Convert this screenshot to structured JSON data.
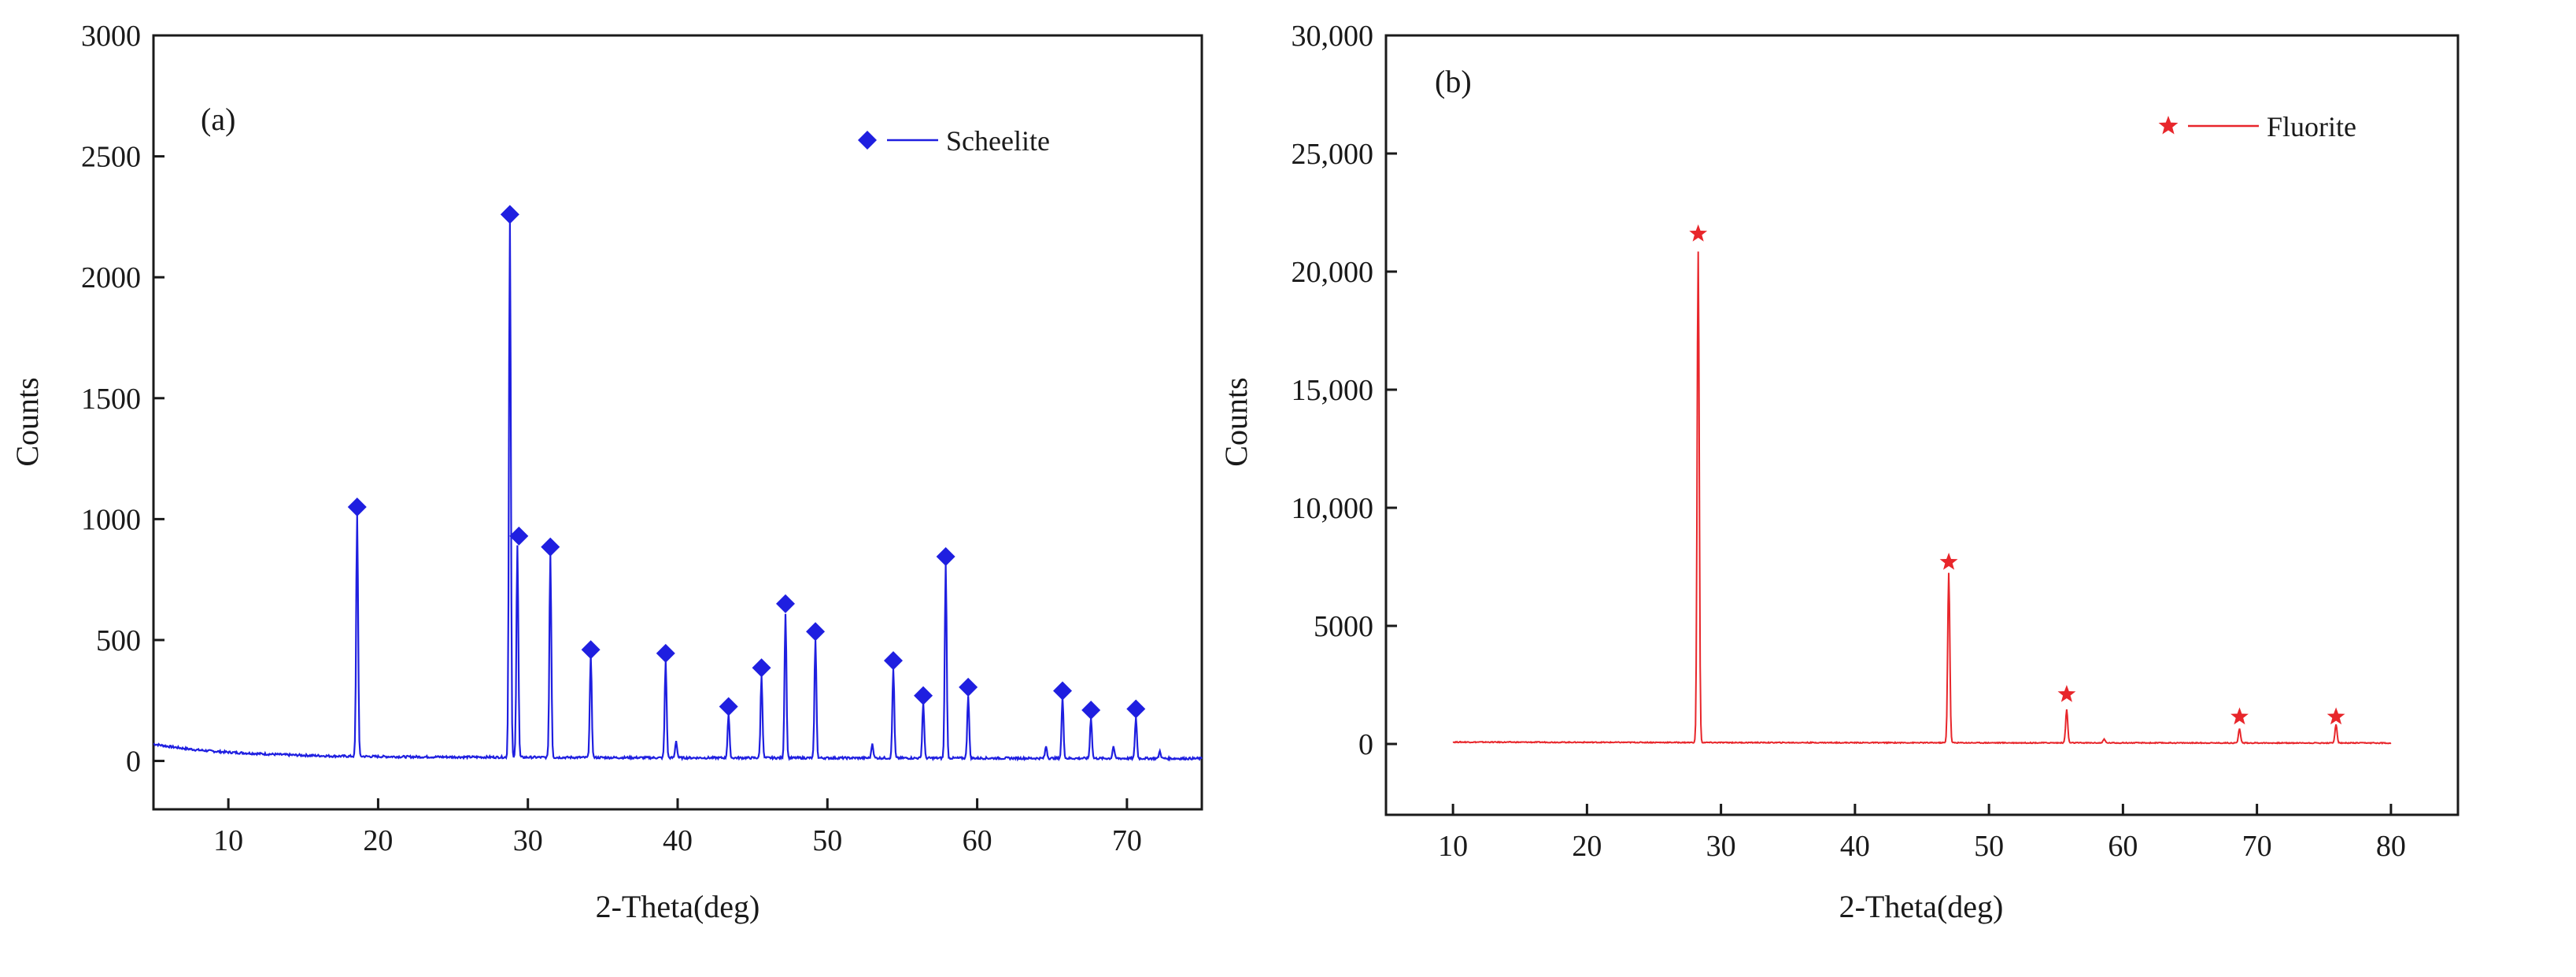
{
  "chart_data": [
    {
      "type": "line",
      "panel_label": "(a)",
      "title": "",
      "xlabel": "2-Theta(deg)",
      "ylabel": "Counts",
      "xlim": [
        5,
        75
      ],
      "ylim": [
        -200,
        3000
      ],
      "x_ticks": [
        10,
        20,
        30,
        40,
        50,
        60,
        70
      ],
      "x_tick_labels": [
        "10",
        "20",
        "30",
        "40",
        "50",
        "60",
        "70"
      ],
      "y_ticks": [
        0,
        500,
        1000,
        1500,
        2000,
        2500,
        3000
      ],
      "y_tick_labels": [
        "0",
        "500",
        "1000",
        "1500",
        "2000",
        "2500",
        "3000"
      ],
      "grid": false,
      "legend_position": "top-right",
      "color": "#1f1fe0",
      "series": [
        {
          "name": "Scheelite",
          "marker": "diamond",
          "background": [
            [
              5,
              70
            ],
            [
              6,
              60
            ],
            [
              7,
              52
            ],
            [
              8,
              45
            ],
            [
              9,
              40
            ],
            [
              10,
              36
            ],
            [
              12,
              30
            ],
            [
              14,
              25
            ],
            [
              17,
              20
            ],
            [
              22,
              17
            ],
            [
              30,
              15
            ],
            [
              40,
              13
            ],
            [
              55,
              12
            ],
            [
              75,
              10
            ]
          ],
          "peaks": [
            {
              "x": 18.6,
              "y": 1000
            },
            {
              "x": 28.8,
              "y": 2220
            },
            {
              "x": 29.3,
              "y": 880
            },
            {
              "x": 31.5,
              "y": 840
            },
            {
              "x": 34.2,
              "y": 420
            },
            {
              "x": 39.2,
              "y": 400
            },
            {
              "x": 39.9,
              "y": 70
            },
            {
              "x": 43.4,
              "y": 180
            },
            {
              "x": 45.6,
              "y": 340
            },
            {
              "x": 47.2,
              "y": 600
            },
            {
              "x": 49.2,
              "y": 490
            },
            {
              "x": 53.0,
              "y": 60
            },
            {
              "x": 54.4,
              "y": 370
            },
            {
              "x": 56.4,
              "y": 230
            },
            {
              "x": 57.9,
              "y": 800
            },
            {
              "x": 59.4,
              "y": 260
            },
            {
              "x": 64.6,
              "y": 50
            },
            {
              "x": 65.7,
              "y": 250
            },
            {
              "x": 67.6,
              "y": 170
            },
            {
              "x": 69.1,
              "y": 50
            },
            {
              "x": 70.6,
              "y": 170
            },
            {
              "x": 72.2,
              "y": 30
            }
          ],
          "markers": [
            {
              "x": 18.6,
              "y": 1050
            },
            {
              "x": 28.8,
              "y": 2260
            },
            {
              "x": 29.4,
              "y": 930
            },
            {
              "x": 31.5,
              "y": 885
            },
            {
              "x": 34.2,
              "y": 460
            },
            {
              "x": 39.2,
              "y": 445
            },
            {
              "x": 43.4,
              "y": 225
            },
            {
              "x": 45.6,
              "y": 385
            },
            {
              "x": 47.2,
              "y": 650
            },
            {
              "x": 49.2,
              "y": 535
            },
            {
              "x": 54.4,
              "y": 415
            },
            {
              "x": 56.4,
              "y": 270
            },
            {
              "x": 57.9,
              "y": 845
            },
            {
              "x": 59.4,
              "y": 305
            },
            {
              "x": 65.7,
              "y": 290
            },
            {
              "x": 67.6,
              "y": 210
            },
            {
              "x": 70.6,
              "y": 215
            }
          ]
        }
      ]
    },
    {
      "type": "line",
      "panel_label": "(b)",
      "title": "",
      "xlabel": "2-Theta(deg)",
      "ylabel": "Counts",
      "xlim": [
        5,
        85
      ],
      "ylim": [
        -3000,
        30000
      ],
      "x_ticks": [
        10,
        20,
        30,
        40,
        50,
        60,
        70,
        80
      ],
      "x_tick_labels": [
        "10",
        "20",
        "30",
        "40",
        "50",
        "60",
        "70",
        "80"
      ],
      "y_ticks": [
        0,
        5000,
        10000,
        15000,
        20000,
        25000,
        30000
      ],
      "y_tick_labels": [
        "0",
        "5000",
        "10,000",
        "15,000",
        "20,000",
        "25,000",
        "30,000"
      ],
      "grid": false,
      "legend_position": "top-right",
      "color": "#e8262b",
      "series": [
        {
          "name": "Fluorite",
          "marker": "star",
          "x_range": [
            10,
            80
          ],
          "background": [
            [
              10,
              80
            ],
            [
              30,
              60
            ],
            [
              50,
              50
            ],
            [
              80,
              40
            ]
          ],
          "peaks": [
            {
              "x": 28.3,
              "y": 20800
            },
            {
              "x": 47.0,
              "y": 7200
            },
            {
              "x": 55.8,
              "y": 1400
            },
            {
              "x": 58.6,
              "y": 150
            },
            {
              "x": 68.7,
              "y": 600
            },
            {
              "x": 75.9,
              "y": 800
            }
          ],
          "markers": [
            {
              "x": 28.3,
              "y": 21600
            },
            {
              "x": 47.0,
              "y": 7700
            },
            {
              "x": 55.8,
              "y": 2100
            },
            {
              "x": 68.7,
              "y": 1150
            },
            {
              "x": 75.9,
              "y": 1150
            }
          ]
        }
      ]
    }
  ]
}
